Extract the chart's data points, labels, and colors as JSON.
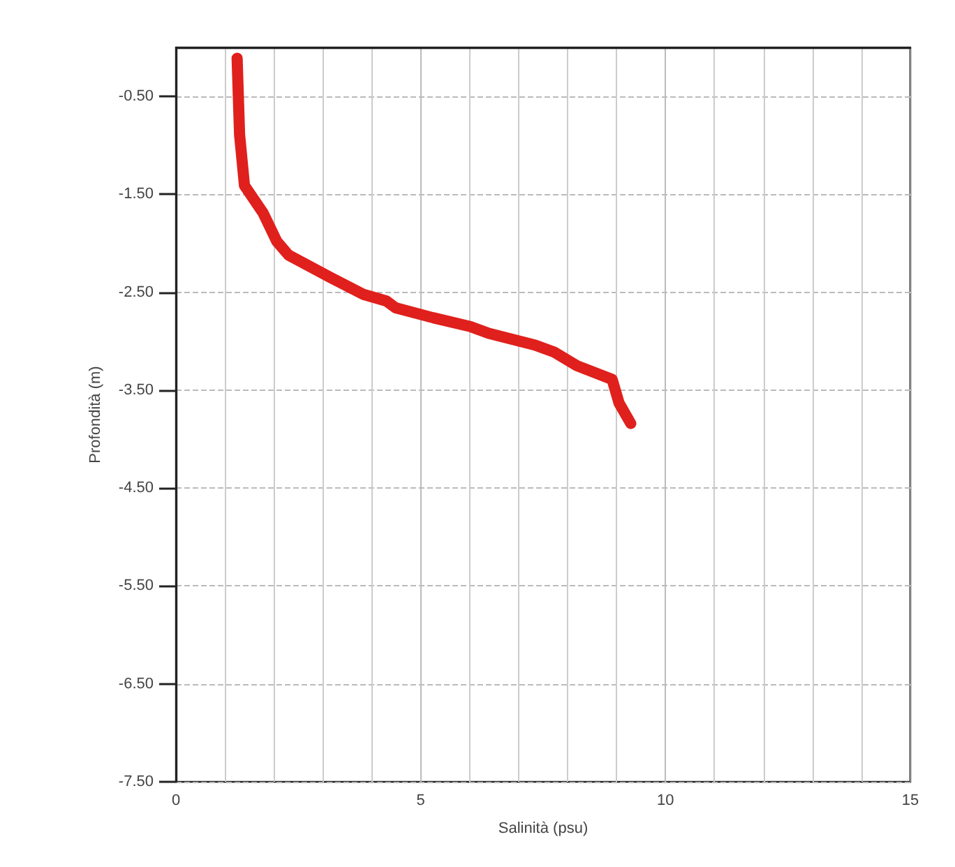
{
  "chart_data": {
    "type": "line",
    "xlabel": "Salinità (psu)",
    "ylabel": "Profondità (m)",
    "xlim": [
      0,
      15
    ],
    "xticks": [
      0,
      5,
      10,
      15
    ],
    "ylim": [
      -7.5,
      0
    ],
    "yticks": [
      {
        "value": -0.5,
        "label": "-0.50"
      },
      {
        "value": -1.5,
        "label": "-1.50"
      },
      {
        "value": -2.5,
        "label": "-2.50"
      },
      {
        "value": -3.5,
        "label": "-3.50"
      },
      {
        "value": -4.5,
        "label": "-4.50"
      },
      {
        "value": -5.5,
        "label": "-5.50"
      },
      {
        "value": -6.5,
        "label": "-6.50"
      },
      {
        "value": -7.5,
        "label": "-7.50"
      }
    ],
    "grid": true,
    "line_style": "solid",
    "series": [
      {
        "color": "#e0201c",
        "x": [
          1.25,
          1.3,
          1.4,
          1.78,
          2.06,
          2.3,
          3.16,
          3.82,
          4.3,
          4.49,
          5.25,
          6.01,
          6.39,
          7.34,
          7.72,
          8.19,
          8.91,
          9.05,
          9.29
        ],
        "values": [
          -0.11,
          -0.89,
          -1.41,
          -1.69,
          -1.98,
          -2.12,
          -2.35,
          -2.52,
          -2.59,
          -2.66,
          -2.76,
          -2.85,
          -2.92,
          -3.04,
          -3.11,
          -3.25,
          -3.39,
          -3.63,
          -3.84
        ]
      }
    ]
  }
}
